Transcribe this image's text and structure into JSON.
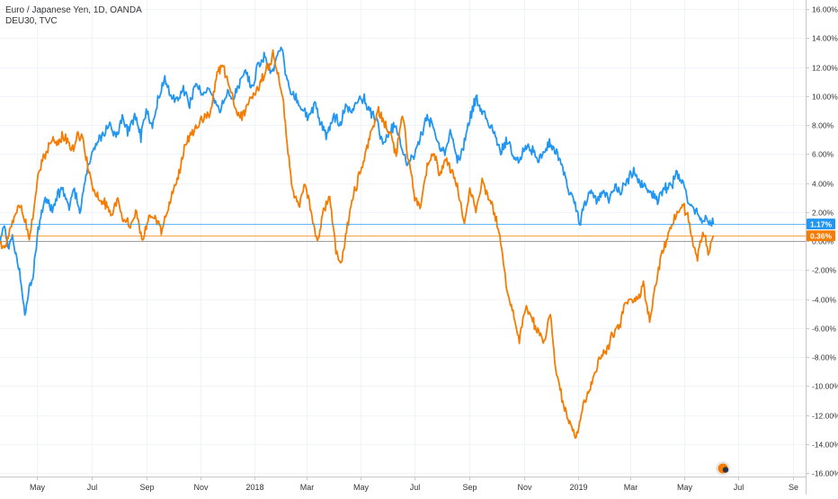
{
  "legend": {
    "primary": "Euro / Japanese Yen, 1D, OANDA",
    "secondary": "DEU30, TVC"
  },
  "chart_data": {
    "type": "line",
    "title": "",
    "xlabel": "",
    "ylabel": "",
    "y_unit": "%",
    "ylim": [
      -16,
      16
    ],
    "xlim": [
      "2017-03-20",
      "2019-09-15"
    ],
    "grid": true,
    "legend_position": "top-left",
    "x_ticks": [
      {
        "date": "2017-05-01",
        "label": "May"
      },
      {
        "date": "2017-07-01",
        "label": "Jul"
      },
      {
        "date": "2017-09-01",
        "label": "Sep"
      },
      {
        "date": "2017-11-01",
        "label": "Nov"
      },
      {
        "date": "2018-01-01",
        "label": "2018"
      },
      {
        "date": "2018-03-01",
        "label": "Mar"
      },
      {
        "date": "2018-05-01",
        "label": "May"
      },
      {
        "date": "2018-07-01",
        "label": "Jul"
      },
      {
        "date": "2018-09-01",
        "label": "Sep"
      },
      {
        "date": "2018-11-01",
        "label": "Nov"
      },
      {
        "date": "2019-01-01",
        "label": "2019"
      },
      {
        "date": "2019-03-01",
        "label": "Mar"
      },
      {
        "date": "2019-05-01",
        "label": "May"
      },
      {
        "date": "2019-07-01",
        "label": "Jul"
      },
      {
        "date": "2019-09-01",
        "label": "Se"
      }
    ],
    "y_ticks": [
      {
        "value": 16,
        "label": "16.00%"
      },
      {
        "value": 14,
        "label": "14.00%"
      },
      {
        "value": 12,
        "label": "12.00%"
      },
      {
        "value": 10,
        "label": "10.00%"
      },
      {
        "value": 8,
        "label": "8.00%"
      },
      {
        "value": 6,
        "label": "6.00%"
      },
      {
        "value": 4,
        "label": "4.00%"
      },
      {
        "value": 2,
        "label": "2.00%"
      },
      {
        "value": 0,
        "label": "0.00%"
      },
      {
        "value": -2,
        "label": "-2.00%"
      },
      {
        "value": -4,
        "label": "-4.00%"
      },
      {
        "value": -6,
        "label": "-6.00%"
      },
      {
        "value": -8,
        "label": "-8.00%"
      },
      {
        "value": -10,
        "label": "-10.00%"
      },
      {
        "value": -12,
        "label": "-12.00%"
      },
      {
        "value": -14,
        "label": "-14.00%"
      },
      {
        "value": -16,
        "label": "-16.00%"
      }
    ],
    "series": [
      {
        "name": "Euro / Japanese Yen, 1D, OANDA",
        "color": "#2196f3",
        "last_value": 1.17,
        "last_label": "1.17%",
        "points": [
          [
            "2017-03-20",
            0.0
          ],
          [
            "2017-03-24",
            1.1
          ],
          [
            "2017-03-29",
            -0.4
          ],
          [
            "2017-04-03",
            0.2
          ],
          [
            "2017-04-07",
            -1.0
          ],
          [
            "2017-04-12",
            -2.5
          ],
          [
            "2017-04-17",
            -4.9
          ],
          [
            "2017-04-22",
            -3.5
          ],
          [
            "2017-04-27",
            -2.0
          ],
          [
            "2017-05-01",
            0.3
          ],
          [
            "2017-05-06",
            2.0
          ],
          [
            "2017-05-12",
            3.0
          ],
          [
            "2017-05-18",
            2.0
          ],
          [
            "2017-05-24",
            3.2
          ],
          [
            "2017-05-31",
            3.5
          ],
          [
            "2017-06-06",
            2.3
          ],
          [
            "2017-06-12",
            3.5
          ],
          [
            "2017-06-18",
            2.0
          ],
          [
            "2017-06-24",
            4.0
          ],
          [
            "2017-07-01",
            6.0
          ],
          [
            "2017-07-08",
            6.8
          ],
          [
            "2017-07-15",
            7.5
          ],
          [
            "2017-07-22",
            8.2
          ],
          [
            "2017-07-29",
            7.0
          ],
          [
            "2017-08-05",
            8.4
          ],
          [
            "2017-08-12",
            7.5
          ],
          [
            "2017-08-19",
            8.8
          ],
          [
            "2017-08-26",
            7.2
          ],
          [
            "2017-09-01",
            9.0
          ],
          [
            "2017-09-08",
            8.0
          ],
          [
            "2017-09-15",
            10.0
          ],
          [
            "2017-09-22",
            11.2
          ],
          [
            "2017-09-29",
            10.0
          ],
          [
            "2017-10-06",
            9.8
          ],
          [
            "2017-10-13",
            10.5
          ],
          [
            "2017-10-20",
            9.3
          ],
          [
            "2017-10-27",
            10.8
          ],
          [
            "2017-11-03",
            10.0
          ],
          [
            "2017-11-10",
            10.5
          ],
          [
            "2017-11-17",
            9.5
          ],
          [
            "2017-11-24",
            9.0
          ],
          [
            "2017-12-01",
            10.3
          ],
          [
            "2017-12-08",
            9.8
          ],
          [
            "2017-12-15",
            10.8
          ],
          [
            "2017-12-22",
            11.8
          ],
          [
            "2017-12-29",
            10.5
          ],
          [
            "2018-01-05",
            12.0
          ],
          [
            "2018-01-12",
            12.8
          ],
          [
            "2018-01-19",
            11.5
          ],
          [
            "2018-01-26",
            12.5
          ],
          [
            "2018-02-01",
            13.5
          ],
          [
            "2018-02-05",
            11.5
          ],
          [
            "2018-02-10",
            10.5
          ],
          [
            "2018-02-17",
            9.8
          ],
          [
            "2018-02-24",
            9.0
          ],
          [
            "2018-03-03",
            8.5
          ],
          [
            "2018-03-10",
            9.5
          ],
          [
            "2018-03-17",
            8.0
          ],
          [
            "2018-03-24",
            7.2
          ],
          [
            "2018-03-31",
            8.8
          ],
          [
            "2018-04-07",
            8.0
          ],
          [
            "2018-04-14",
            9.2
          ],
          [
            "2018-04-21",
            9.0
          ],
          [
            "2018-04-28",
            9.6
          ],
          [
            "2018-05-05",
            9.8
          ],
          [
            "2018-05-12",
            9.0
          ],
          [
            "2018-05-19",
            8.2
          ],
          [
            "2018-05-26",
            6.5
          ],
          [
            "2018-06-02",
            7.5
          ],
          [
            "2018-06-09",
            8.0
          ],
          [
            "2018-06-16",
            6.5
          ],
          [
            "2018-06-23",
            5.3
          ],
          [
            "2018-06-30",
            6.0
          ],
          [
            "2018-07-07",
            7.0
          ],
          [
            "2018-07-14",
            8.5
          ],
          [
            "2018-07-21",
            8.0
          ],
          [
            "2018-07-28",
            6.5
          ],
          [
            "2018-08-04",
            6.2
          ],
          [
            "2018-08-11",
            7.5
          ],
          [
            "2018-08-18",
            5.5
          ],
          [
            "2018-08-25",
            6.5
          ],
          [
            "2018-09-01",
            8.5
          ],
          [
            "2018-09-08",
            9.8
          ],
          [
            "2018-09-15",
            9.0
          ],
          [
            "2018-09-22",
            8.2
          ],
          [
            "2018-09-29",
            7.5
          ],
          [
            "2018-10-06",
            6.2
          ],
          [
            "2018-10-13",
            7.0
          ],
          [
            "2018-10-20",
            6.0
          ],
          [
            "2018-10-27",
            5.5
          ],
          [
            "2018-11-03",
            6.5
          ],
          [
            "2018-11-10",
            6.3
          ],
          [
            "2018-11-17",
            5.6
          ],
          [
            "2018-11-24",
            6.0
          ],
          [
            "2018-12-01",
            6.8
          ],
          [
            "2018-12-08",
            6.0
          ],
          [
            "2018-12-15",
            5.0
          ],
          [
            "2018-12-22",
            3.5
          ],
          [
            "2018-12-29",
            2.5
          ],
          [
            "2019-01-03",
            1.2
          ],
          [
            "2019-01-08",
            2.5
          ],
          [
            "2019-01-15",
            3.3
          ],
          [
            "2019-01-22",
            2.8
          ],
          [
            "2019-01-29",
            3.4
          ],
          [
            "2019-02-05",
            3.0
          ],
          [
            "2019-02-12",
            3.8
          ],
          [
            "2019-02-19",
            3.5
          ],
          [
            "2019-02-26",
            4.2
          ],
          [
            "2019-03-05",
            4.8
          ],
          [
            "2019-03-12",
            4.0
          ],
          [
            "2019-03-19",
            3.6
          ],
          [
            "2019-03-26",
            3.2
          ],
          [
            "2019-04-02",
            2.9
          ],
          [
            "2019-04-09",
            3.6
          ],
          [
            "2019-04-16",
            3.8
          ],
          [
            "2019-04-23",
            4.6
          ],
          [
            "2019-04-30",
            3.8
          ],
          [
            "2019-05-07",
            2.5
          ],
          [
            "2019-05-14",
            2.0
          ],
          [
            "2019-05-21",
            1.5
          ],
          [
            "2019-05-28",
            1.4
          ],
          [
            "2019-06-03",
            1.17
          ]
        ]
      },
      {
        "name": "DEU30, TVC",
        "color": "#f57c00",
        "last_value": 0.36,
        "last_label": "0.36%",
        "points": [
          [
            "2017-03-20",
            0.0
          ],
          [
            "2017-03-25",
            -0.5
          ],
          [
            "2017-03-30",
            0.5
          ],
          [
            "2017-04-05",
            1.5
          ],
          [
            "2017-04-11",
            2.5
          ],
          [
            "2017-04-17",
            1.5
          ],
          [
            "2017-04-22",
            0.0
          ],
          [
            "2017-04-27",
            2.0
          ],
          [
            "2017-05-02",
            4.5
          ],
          [
            "2017-05-06",
            5.5
          ],
          [
            "2017-05-11",
            6.2
          ],
          [
            "2017-05-17",
            7.0
          ],
          [
            "2017-05-23",
            6.5
          ],
          [
            "2017-05-29",
            7.2
          ],
          [
            "2017-06-04",
            7.0
          ],
          [
            "2017-06-10",
            6.3
          ],
          [
            "2017-06-16",
            7.5
          ],
          [
            "2017-06-22",
            6.8
          ],
          [
            "2017-06-29",
            4.5
          ],
          [
            "2017-07-03",
            3.5
          ],
          [
            "2017-07-10",
            3.0
          ],
          [
            "2017-07-17",
            2.5
          ],
          [
            "2017-07-24",
            1.8
          ],
          [
            "2017-07-31",
            2.8
          ],
          [
            "2017-08-07",
            1.5
          ],
          [
            "2017-08-14",
            1.0
          ],
          [
            "2017-08-21",
            2.0
          ],
          [
            "2017-08-28",
            0.0
          ],
          [
            "2017-09-04",
            1.8
          ],
          [
            "2017-09-11",
            1.5
          ],
          [
            "2017-09-18",
            0.8
          ],
          [
            "2017-09-25",
            2.0
          ],
          [
            "2017-10-02",
            3.5
          ],
          [
            "2017-10-09",
            5.0
          ],
          [
            "2017-10-16",
            6.8
          ],
          [
            "2017-10-23",
            7.5
          ],
          [
            "2017-10-30",
            8.0
          ],
          [
            "2017-11-06",
            8.5
          ],
          [
            "2017-11-13",
            9.0
          ],
          [
            "2017-11-20",
            11.5
          ],
          [
            "2017-11-27",
            12.0
          ],
          [
            "2017-12-04",
            10.5
          ],
          [
            "2017-12-11",
            9.0
          ],
          [
            "2017-12-18",
            8.5
          ],
          [
            "2017-12-25",
            9.5
          ],
          [
            "2018-01-01",
            10.0
          ],
          [
            "2018-01-08",
            11.0
          ],
          [
            "2018-01-15",
            11.8
          ],
          [
            "2018-01-22",
            12.8
          ],
          [
            "2018-01-29",
            11.0
          ],
          [
            "2018-02-03",
            9.5
          ],
          [
            "2018-02-08",
            6.0
          ],
          [
            "2018-02-13",
            3.5
          ],
          [
            "2018-02-20",
            2.5
          ],
          [
            "2018-02-27",
            4.0
          ],
          [
            "2018-03-06",
            2.0
          ],
          [
            "2018-03-13",
            0.0
          ],
          [
            "2018-03-20",
            2.0
          ],
          [
            "2018-03-27",
            3.0
          ],
          [
            "2018-04-03",
            -0.5
          ],
          [
            "2018-04-08",
            -1.8
          ],
          [
            "2018-04-15",
            0.8
          ],
          [
            "2018-04-22",
            3.0
          ],
          [
            "2018-04-29",
            4.5
          ],
          [
            "2018-05-06",
            6.0
          ],
          [
            "2018-05-13",
            7.5
          ],
          [
            "2018-05-20",
            9.0
          ],
          [
            "2018-05-27",
            8.2
          ],
          [
            "2018-06-03",
            7.5
          ],
          [
            "2018-06-10",
            6.0
          ],
          [
            "2018-06-17",
            8.8
          ],
          [
            "2018-06-24",
            5.5
          ],
          [
            "2018-07-01",
            3.0
          ],
          [
            "2018-07-08",
            2.5
          ],
          [
            "2018-07-15",
            5.2
          ],
          [
            "2018-07-22",
            6.2
          ],
          [
            "2018-07-29",
            4.5
          ],
          [
            "2018-08-05",
            5.8
          ],
          [
            "2018-08-12",
            4.8
          ],
          [
            "2018-08-19",
            3.5
          ],
          [
            "2018-08-26",
            1.0
          ],
          [
            "2018-09-01",
            3.5
          ],
          [
            "2018-09-08",
            2.3
          ],
          [
            "2018-09-15",
            4.0
          ],
          [
            "2018-09-22",
            3.0
          ],
          [
            "2018-09-29",
            2.0
          ],
          [
            "2018-10-06",
            0.0
          ],
          [
            "2018-10-13",
            -3.5
          ],
          [
            "2018-10-20",
            -5.0
          ],
          [
            "2018-10-27",
            -6.8
          ],
          [
            "2018-11-03",
            -4.5
          ],
          [
            "2018-11-10",
            -5.5
          ],
          [
            "2018-11-17",
            -6.2
          ],
          [
            "2018-11-24",
            -7.0
          ],
          [
            "2018-12-01",
            -5.0
          ],
          [
            "2018-12-08",
            -9.5
          ],
          [
            "2018-12-15",
            -11.0
          ],
          [
            "2018-12-22",
            -12.5
          ],
          [
            "2018-12-29",
            -13.6
          ],
          [
            "2019-01-05",
            -12.0
          ],
          [
            "2019-01-12",
            -10.5
          ],
          [
            "2019-01-19",
            -9.5
          ],
          [
            "2019-01-26",
            -8.0
          ],
          [
            "2019-02-02",
            -7.8
          ],
          [
            "2019-02-09",
            -6.5
          ],
          [
            "2019-02-16",
            -6.0
          ],
          [
            "2019-02-23",
            -4.5
          ],
          [
            "2019-03-02",
            -4.0
          ],
          [
            "2019-03-09",
            -4.2
          ],
          [
            "2019-03-16",
            -3.0
          ],
          [
            "2019-03-23",
            -5.5
          ],
          [
            "2019-03-30",
            -3.0
          ],
          [
            "2019-04-06",
            -1.0
          ],
          [
            "2019-04-13",
            0.5
          ],
          [
            "2019-04-20",
            1.5
          ],
          [
            "2019-04-27",
            2.5
          ],
          [
            "2019-05-04",
            2.0
          ],
          [
            "2019-05-11",
            0.0
          ],
          [
            "2019-05-16",
            -1.2
          ],
          [
            "2019-05-22",
            0.8
          ],
          [
            "2019-05-28",
            -0.8
          ],
          [
            "2019-06-03",
            0.36
          ]
        ]
      }
    ]
  }
}
